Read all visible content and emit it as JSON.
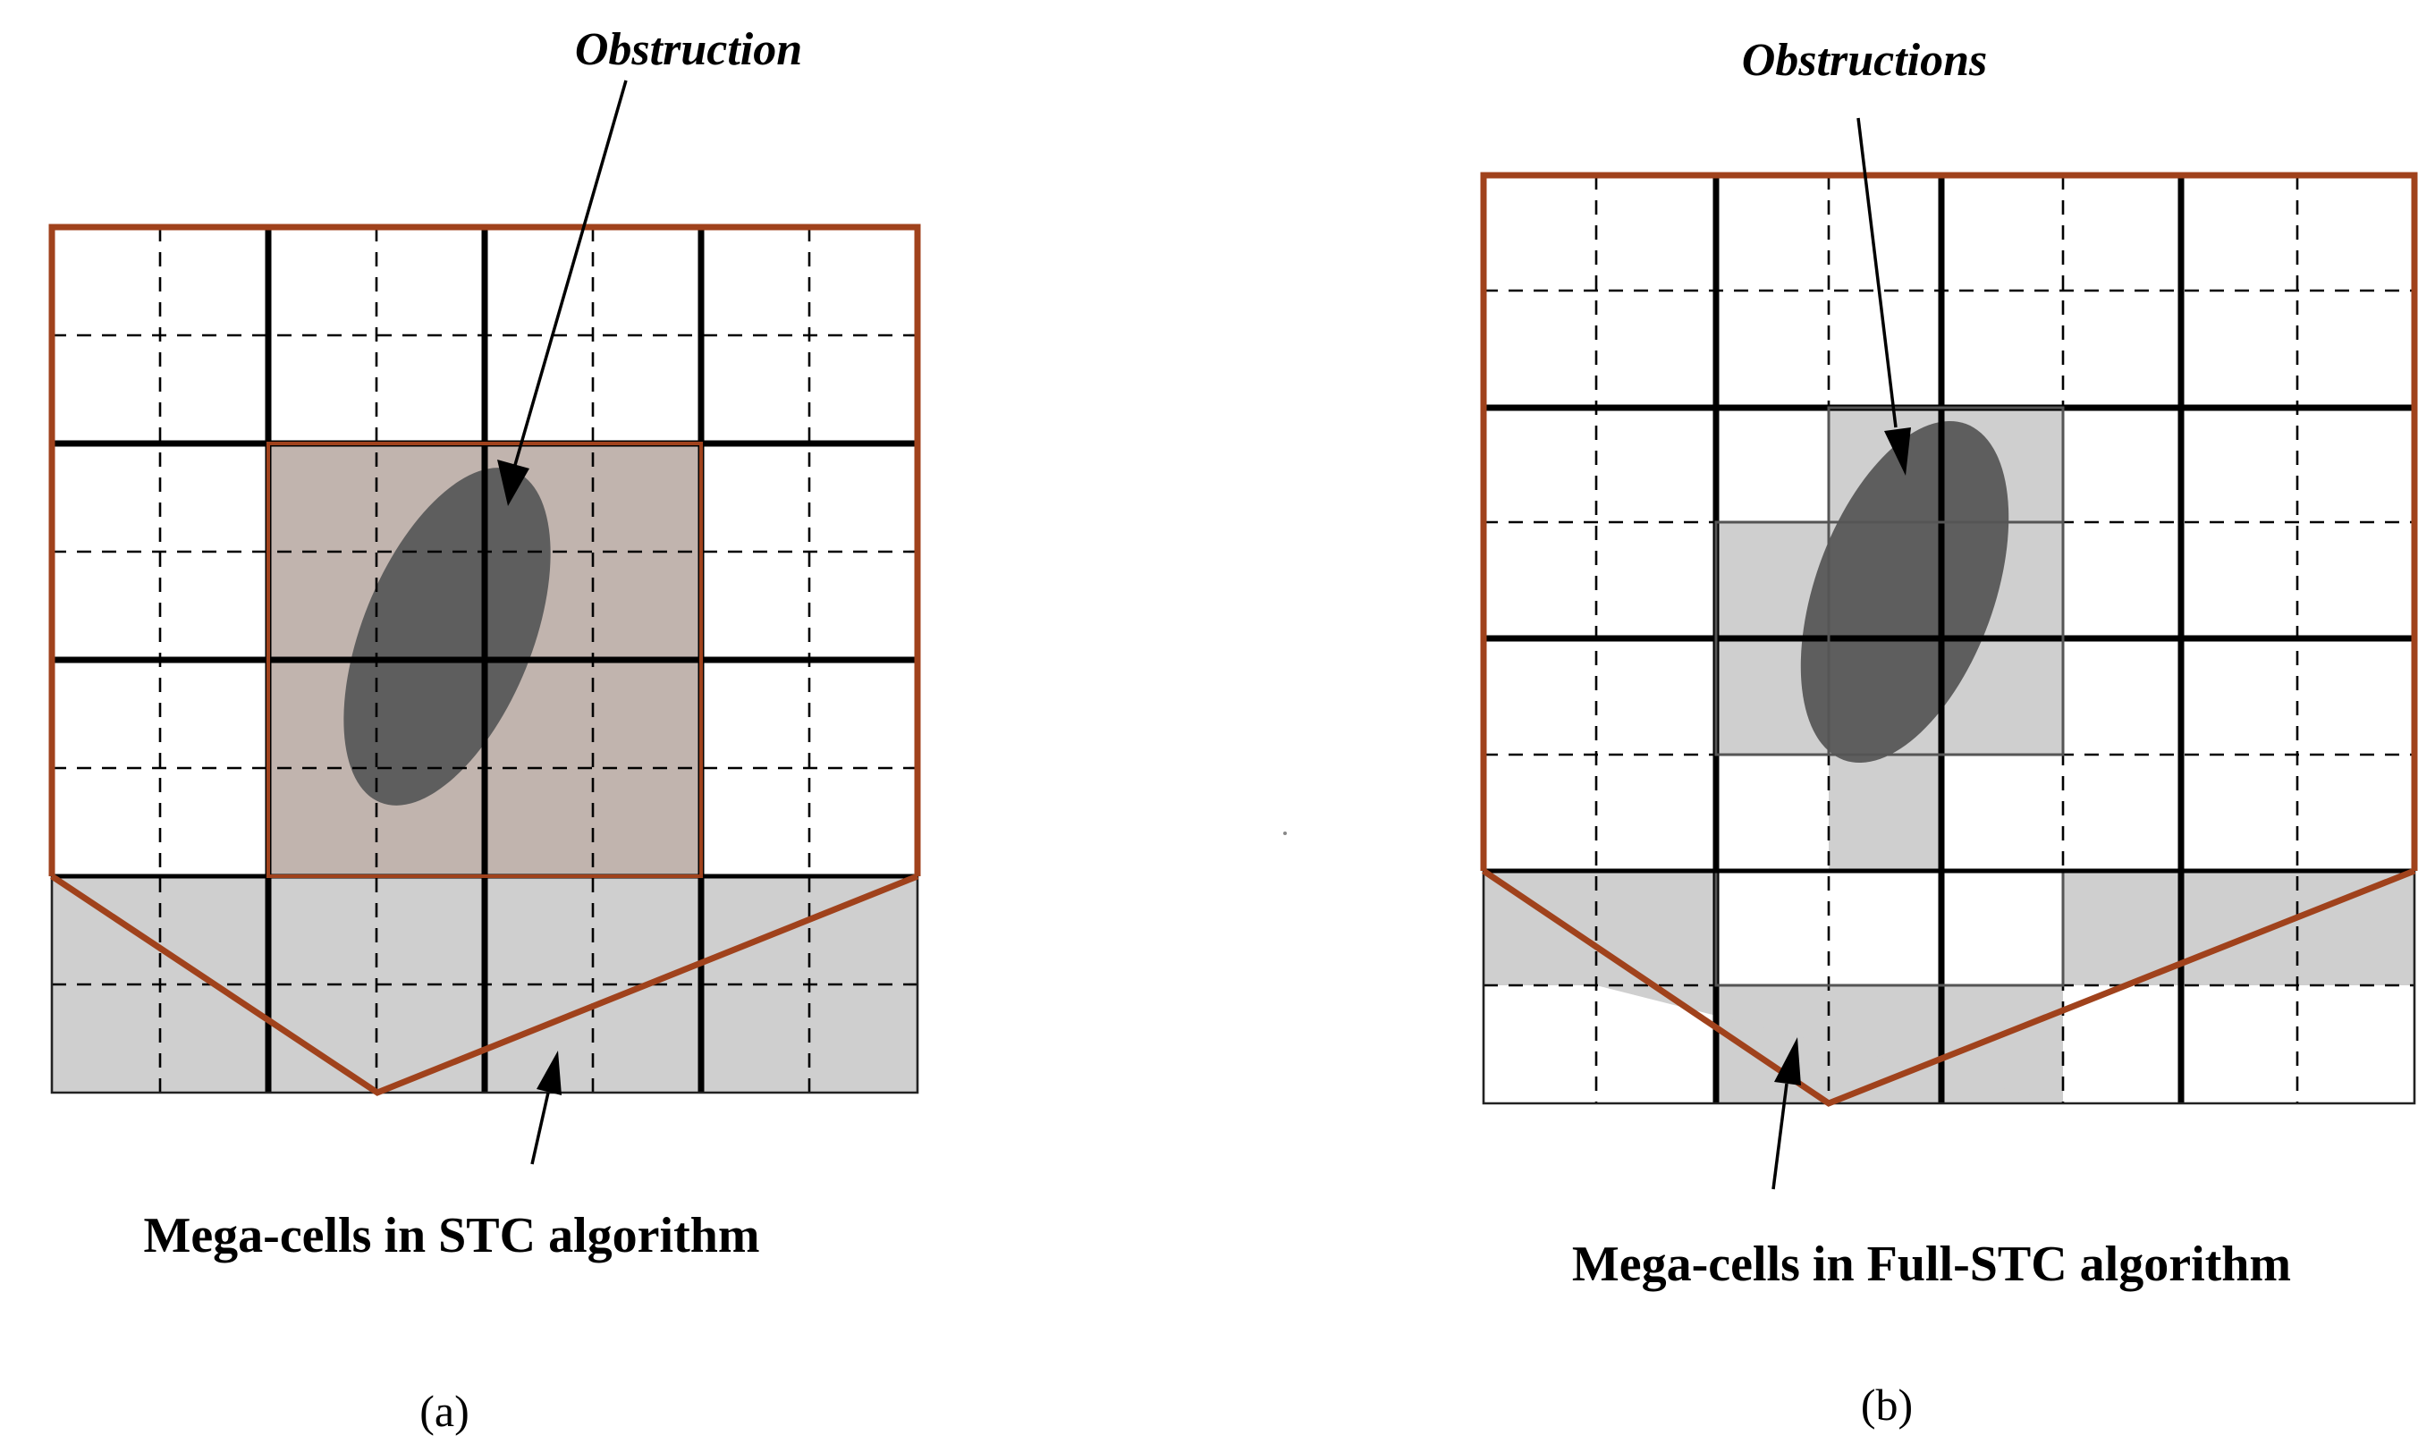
{
  "panels": [
    {
      "id": "a",
      "obstruction_label": "Obstruction",
      "megacell_label": "Mega-cells in STC algorithm",
      "sub_label": "(a)"
    },
    {
      "id": "b",
      "obstruction_label": "Obstructions",
      "megacell_label": "Mega-cells in Full-STC algorithm",
      "sub_label": "(b)"
    }
  ],
  "colors": {
    "frame": "#a0421c",
    "shaded_cell": "#cfcfcf",
    "obstructed_megacell": "#c1b4ae",
    "obstacle": "#5e5e5e"
  }
}
